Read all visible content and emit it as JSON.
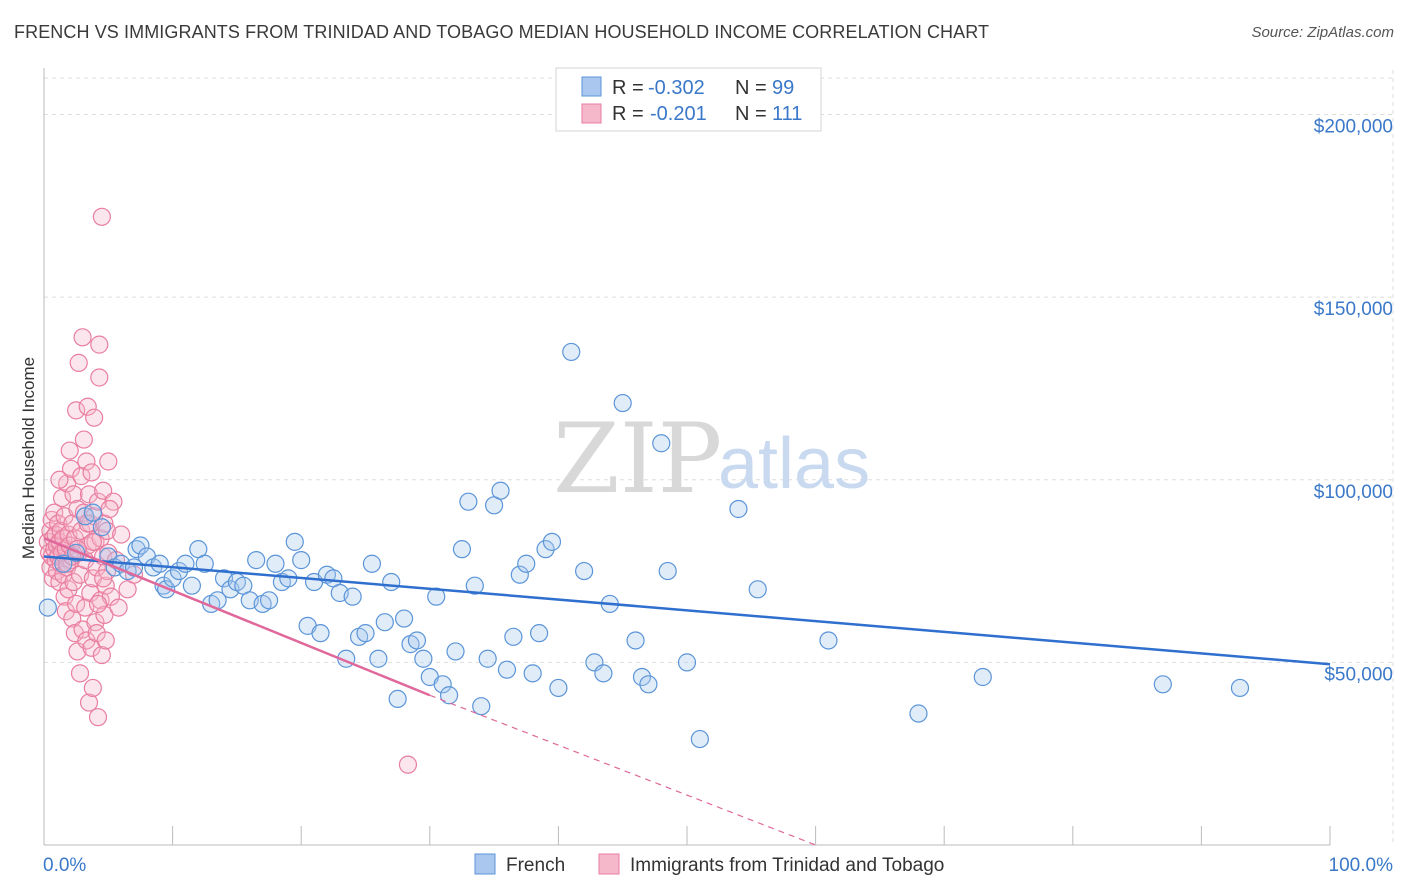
{
  "title": "FRENCH VS IMMIGRANTS FROM TRINIDAD AND TOBAGO MEDIAN HOUSEHOLD INCOME CORRELATION CHART",
  "source": "Source: ZipAtlas.com",
  "watermark": {
    "part1": "ZIP",
    "part2": "atlas"
  },
  "legend": {
    "rows": [
      {
        "r_label": "R =",
        "r_value": "-0.302",
        "n_label": "N =",
        "n_value": "99"
      },
      {
        "r_label": "R =",
        "r_value": "-0.201",
        "n_label": "N =",
        "n_value": "111"
      }
    ]
  },
  "colors": {
    "blue_fill": "#aac8ef",
    "blue_stroke": "#5b95d8",
    "blue_line": "#2f6fce",
    "pink_fill": "#f5b8cb",
    "pink_stroke": "#e97ea0",
    "pink_line": "#e0689a",
    "grid": "#dddddd",
    "tick_text": "#3a78c9"
  },
  "chart_data": {
    "type": "scatter",
    "title": "FRENCH VS IMMIGRANTS FROM TRINIDAD AND TOBAGO MEDIAN HOUSEHOLD INCOME CORRELATION CHART",
    "xlabel": "",
    "ylabel": "Median Household Income",
    "xlim": [
      0,
      100
    ],
    "ylim": [
      0,
      210000
    ],
    "x_tick_labels": [
      "0.0%",
      "100.0%"
    ],
    "y_ticks": [
      50000,
      100000,
      150000,
      200000
    ],
    "y_tick_labels": [
      "$50,000",
      "$100,000",
      "$150,000",
      "$200,000"
    ],
    "grid": true,
    "legend_position": "top-center",
    "series": [
      {
        "name": "French",
        "r": -0.302,
        "n": 99,
        "trend": {
          "x": [
            0,
            100
          ],
          "y": [
            79000,
            49500
          ]
        },
        "x": [
          0.3,
          1.5,
          2.5,
          3.2,
          3.8,
          4.5,
          5,
          5.5,
          6,
          6.5,
          7,
          7.2,
          7.5,
          8,
          8.5,
          9,
          9.3,
          9.5,
          10,
          10.5,
          11,
          11.5,
          12,
          12.5,
          13,
          13.5,
          14,
          14.5,
          15,
          15.5,
          16,
          16.5,
          17,
          17.5,
          18,
          18.5,
          19,
          19.5,
          20,
          20.5,
          21,
          21.5,
          22,
          22.5,
          23,
          23.5,
          24,
          24.5,
          25,
          25.5,
          26,
          26.5,
          27,
          27.5,
          28,
          28.5,
          29,
          29.5,
          30,
          30.5,
          31,
          31.5,
          32,
          32.5,
          33,
          33.5,
          34,
          34.5,
          35,
          35.5,
          36,
          36.5,
          37,
          37.5,
          38,
          38.5,
          39,
          39.5,
          40,
          41,
          42,
          42.8,
          43.5,
          44,
          45,
          46,
          46.5,
          47,
          48,
          48.5,
          50,
          51,
          54,
          55.5,
          61,
          68,
          73,
          87,
          93
        ],
        "y": [
          65000,
          77000,
          80000,
          90000,
          91000,
          87000,
          79000,
          76000,
          77000,
          75000,
          76000,
          81000,
          82000,
          79000,
          76000,
          77000,
          71000,
          70000,
          73000,
          75000,
          77000,
          71000,
          81000,
          77000,
          66000,
          67000,
          73000,
          70000,
          72000,
          71000,
          67000,
          78000,
          66000,
          67000,
          77000,
          72000,
          73000,
          83000,
          78000,
          60000,
          72000,
          58000,
          74000,
          73000,
          69000,
          51000,
          68000,
          57000,
          58000,
          77000,
          51000,
          61000,
          72000,
          40000,
          62000,
          55000,
          56000,
          51000,
          46000,
          68000,
          44000,
          41000,
          53000,
          81000,
          94000,
          71000,
          38000,
          51000,
          93000,
          97000,
          48000,
          57000,
          74000,
          77000,
          47000,
          58000,
          81000,
          83000,
          43000,
          135000,
          75000,
          50000,
          47000,
          66000,
          121000,
          56000,
          46000,
          44000,
          110000,
          75000,
          50000,
          29000,
          92000,
          70000,
          56000,
          36000,
          46000,
          44000,
          43000
        ]
      },
      {
        "name": "Immigrants from Trinidad and Tobago",
        "r": -0.201,
        "n": 111,
        "trend": {
          "x": [
            0,
            30
          ],
          "y": [
            84000,
            41000
          ]
        },
        "trend_extension": {
          "x": [
            30,
            60
          ],
          "y": [
            41000,
            0
          ]
        },
        "x": [
          0.3,
          0.4,
          0.5,
          0.5,
          0.6,
          0.6,
          0.7,
          0.7,
          0.8,
          0.8,
          0.9,
          0.9,
          1,
          1,
          1.1,
          1.1,
          1.2,
          1.2,
          1.3,
          1.3,
          1.4,
          1.4,
          1.5,
          1.5,
          1.6,
          1.6,
          1.7,
          1.7,
          1.8,
          1.8,
          1.9,
          1.9,
          2,
          2,
          2.1,
          2.1,
          2.2,
          2.2,
          2.3,
          2.3,
          2.4,
          2.4,
          2.5,
          2.5,
          2.6,
          2.6,
          2.7,
          2.7,
          2.8,
          2.8,
          2.9,
          2.9,
          3,
          3,
          3.1,
          3.1,
          3.2,
          3.2,
          3.3,
          3.3,
          3.4,
          3.4,
          3.5,
          3.5,
          3.6,
          3.6,
          3.7,
          3.7,
          3.8,
          3.8,
          3.9,
          3.9,
          4,
          4,
          4.1,
          4.1,
          4.2,
          4.2,
          4.3,
          4.3,
          4.4,
          4.4,
          4.5,
          4.5,
          4.6,
          4.6,
          4.7,
          4.7,
          4.8,
          4.8,
          4.9,
          4.9,
          5,
          5,
          5.2,
          5.4,
          5.6,
          5.8,
          6,
          6.5,
          7,
          28.3,
          1.8,
          2.6,
          3.4,
          4.2,
          5.1,
          2.2,
          3.8,
          1.2,
          4.6
        ],
        "y": [
          83000,
          80000,
          86000,
          76000,
          79000,
          89000,
          84000,
          73000,
          81000,
          91000,
          78000,
          85000,
          82000,
          75000,
          88000,
          79000,
          83000,
          72000,
          86000,
          77000,
          80000,
          95000,
          74000,
          84000,
          68000,
          90000,
          81000,
          64000,
          99000,
          76000,
          85000,
          70000,
          108000,
          82000,
          78000,
          103000,
          62000,
          88000,
          72000,
          96000,
          58000,
          84000,
          119000,
          66000,
          92000,
          53000,
          80000,
          132000,
          74000,
          47000,
          86000,
          101000,
          59000,
          139000,
          91000,
          111000,
          65000,
          78000,
          105000,
          56000,
          120000,
          82000,
          39000,
          96000,
          69000,
          88000,
          54000,
          102000,
          73000,
          43000,
          90000,
          117000,
          61000,
          83000,
          76000,
          58000,
          35000,
          94000,
          137000,
          128000,
          67000,
          84000,
          52000,
          172000,
          79000,
          97000,
          63000,
          88000,
          71000,
          56000,
          86000,
          75000,
          105000,
          80000,
          68000,
          94000,
          78000,
          65000,
          85000,
          70000,
          74000,
          22000,
          77000,
          81000,
          88000,
          66000,
          92000,
          79000,
          83000,
          100000,
          73000
        ]
      }
    ]
  },
  "bottom_legend": [
    "French",
    "Immigrants from Trinidad and Tobago"
  ]
}
